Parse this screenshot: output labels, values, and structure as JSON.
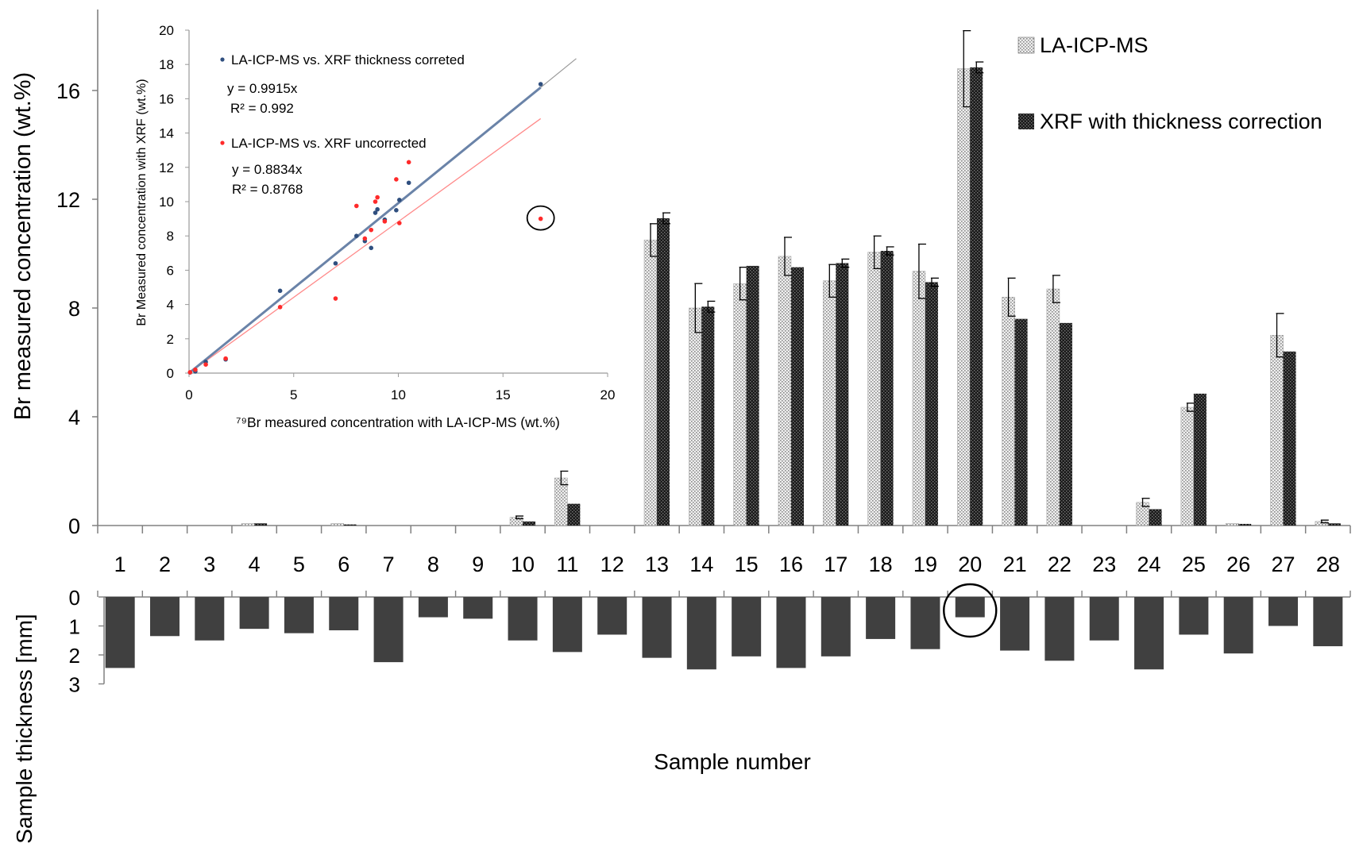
{
  "chart_data": [
    {
      "id": "br-concentration",
      "type": "bar",
      "title": "",
      "ylabel": "Br measured concentration (wt.%)",
      "xlabel": "",
      "ylim": [
        0,
        19.4
      ],
      "yticks": [
        0,
        4,
        8,
        12,
        16
      ],
      "grid": false,
      "legend_position": "top-right",
      "categories": [
        "1",
        "2",
        "3",
        "4",
        "5",
        "6",
        "7",
        "8",
        "9",
        "10",
        "11",
        "12",
        "13",
        "14",
        "15",
        "16",
        "17",
        "18",
        "19",
        "20",
        "21",
        "22",
        "23",
        "24",
        "25",
        "26",
        "27",
        "28"
      ],
      "series": [
        {
          "name": "LA-ICP-MS",
          "color": "#cfcfcf",
          "pattern": "dotted-light",
          "values": [
            0,
            0,
            0,
            0.08,
            0,
            0.08,
            0,
            0,
            0,
            0.3,
            1.75,
            0,
            10.5,
            8.0,
            8.9,
            9.9,
            9.0,
            10.05,
            9.35,
            16.8,
            8.4,
            8.7,
            0,
            0.85,
            4.35,
            0.08,
            7.0,
            0.15
          ],
          "error": [
            0,
            0,
            0,
            0,
            0,
            0,
            0,
            0,
            0,
            0.05,
            0.25,
            0,
            0.6,
            0.9,
            0.6,
            0.7,
            0.6,
            0.6,
            1.0,
            1.4,
            0.7,
            0.5,
            0,
            0.15,
            0.15,
            0,
            0.8,
            0.05
          ]
        },
        {
          "name": "XRF with thickness correction",
          "color": "#222222",
          "pattern": "dotted-dark",
          "values": [
            0,
            0,
            0,
            0.08,
            0,
            0.04,
            0,
            0,
            0,
            0.15,
            0.8,
            0,
            11.3,
            8.05,
            9.55,
            9.5,
            9.65,
            10.1,
            8.95,
            16.85,
            7.6,
            7.45,
            0,
            0.6,
            4.85,
            0.06,
            6.4,
            0.08
          ],
          "error": [
            0,
            0,
            0,
            0,
            0,
            0,
            0,
            0,
            0,
            0,
            0,
            0,
            0.2,
            0.2,
            0,
            0,
            0.15,
            0.15,
            0.15,
            0.2,
            0,
            0,
            0,
            0,
            0,
            0,
            0,
            0
          ]
        }
      ],
      "x_tick_labels": [
        "1",
        "2",
        "3",
        "4",
        "5",
        "6",
        "7",
        "8",
        "9",
        "10",
        "11",
        "12",
        "13",
        "14",
        "15",
        "16",
        "17",
        "18",
        "19",
        "20",
        "21",
        "22",
        "23",
        "24",
        "25",
        "26",
        "27",
        "28"
      ]
    },
    {
      "id": "sample-thickness",
      "type": "bar",
      "title": "",
      "ylabel": "Sample thickness [mm]",
      "xlabel": "Sample number",
      "ylim": [
        0,
        3
      ],
      "y_inverted": true,
      "yticks": [
        0,
        1,
        2,
        3
      ],
      "grid": false,
      "categories": [
        "1",
        "2",
        "3",
        "4",
        "5",
        "6",
        "7",
        "8",
        "9",
        "10",
        "11",
        "12",
        "13",
        "14",
        "15",
        "16",
        "17",
        "18",
        "19",
        "20",
        "21",
        "22",
        "23",
        "24",
        "25",
        "26",
        "27",
        "28"
      ],
      "series": [
        {
          "color": "#404040",
          "values": [
            2.45,
            1.35,
            1.5,
            1.1,
            1.25,
            1.15,
            2.25,
            0.7,
            0.75,
            1.5,
            1.9,
            1.3,
            2.1,
            2.5,
            2.05,
            2.45,
            2.05,
            1.45,
            1.8,
            0.7,
            1.85,
            2.2,
            1.5,
            2.5,
            1.3,
            1.95,
            1.0,
            1.7
          ]
        }
      ],
      "highlight_circle_category": "20"
    },
    {
      "id": "inset-scatter",
      "type": "scatter",
      "title": "",
      "xlabel": "⁷⁹Br measured concentration with LA-ICP-MS (wt.%)",
      "ylabel": "Br Measured concentration with XRF (wt.%)",
      "xlim": [
        0,
        20
      ],
      "ylim": [
        0,
        20
      ],
      "xticks": [
        0,
        5,
        10,
        15,
        20
      ],
      "yticks": [
        0,
        2,
        4,
        6,
        8,
        10,
        12,
        14,
        16,
        18,
        20
      ],
      "grid": false,
      "series": [
        {
          "name": "LA-ICP-MS vs. XRF thickness correted",
          "color": "#2f4f7f",
          "equation": "y = 0.9915x",
          "r2": "R² = 0.992",
          "slope": 0.9915,
          "x": [
            0.05,
            0.3,
            0.8,
            1.75,
            4.35,
            7.0,
            8.0,
            8.4,
            8.7,
            8.9,
            9.0,
            9.35,
            9.9,
            10.05,
            10.5,
            16.8
          ],
          "y": [
            0.04,
            0.1,
            0.65,
            0.8,
            4.8,
            6.4,
            8.0,
            7.7,
            7.3,
            9.35,
            9.55,
            8.95,
            9.5,
            10.1,
            11.1,
            16.85
          ]
        },
        {
          "name": "LA-ICP-MS vs. XRF uncorrected",
          "color": "#ff2a2a",
          "equation": "y = 0.8834x",
          "r2": "R² = 0.8768",
          "slope": 0.8834,
          "x": [
            0.05,
            0.3,
            0.8,
            1.75,
            4.35,
            7.0,
            8.0,
            8.4,
            8.7,
            8.9,
            9.0,
            9.35,
            9.9,
            10.05,
            10.5,
            16.8
          ],
          "y": [
            0.05,
            0.2,
            0.5,
            0.85,
            3.85,
            4.35,
            9.75,
            7.85,
            8.35,
            10.0,
            10.25,
            8.85,
            11.3,
            8.75,
            12.3,
            9.0
          ]
        }
      ],
      "highlight_circle_point": {
        "x": 16.8,
        "y": 9.0
      }
    }
  ]
}
